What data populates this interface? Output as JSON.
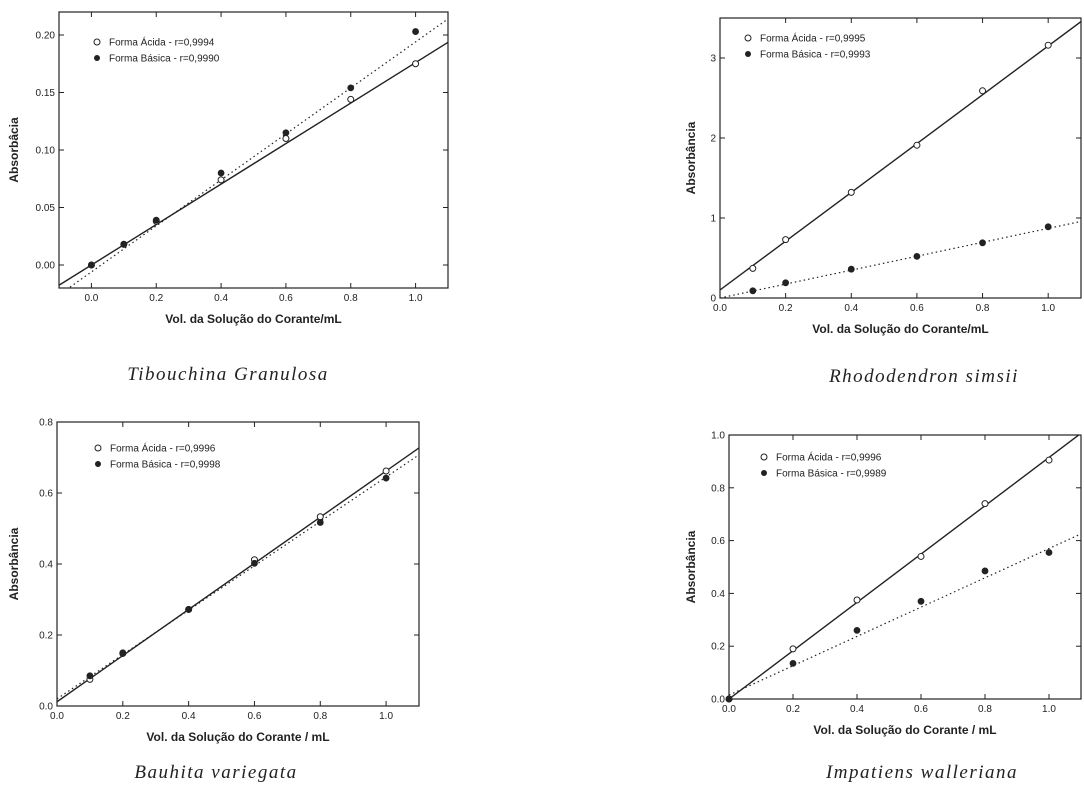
{
  "chart_data": [
    {
      "type": "scatter",
      "caption": "Tibouchina Granulosa",
      "xlabel": "Vol. da Solução do Corante/mL",
      "ylabel": "Absorbâcia",
      "xlim": [
        -0.1,
        1.1
      ],
      "ylim": [
        -0.02,
        0.22
      ],
      "xticks": [
        0.0,
        0.2,
        0.4,
        0.6,
        0.8,
        1.0
      ],
      "xtick_labels": [
        "0.0",
        "0.2",
        "0.4",
        "0.6",
        "0.8",
        "1.0"
      ],
      "yticks": [
        0.0,
        0.05,
        0.1,
        0.15,
        0.2
      ],
      "ytick_labels": [
        "0.00",
        "0.05",
        "0.10",
        "0.15",
        "0.20"
      ],
      "legend_position": "top-left",
      "series": [
        {
          "name": "Forma Ácida - r=0,9994",
          "marker": "open",
          "line": "solid",
          "x": [
            0.0,
            0.1,
            0.2,
            0.4,
            0.6,
            0.8,
            1.0
          ],
          "y": [
            0.0,
            0.018,
            0.038,
            0.074,
            0.11,
            0.144,
            0.175
          ],
          "fit": {
            "intercept": 0.0,
            "slope": 0.176
          }
        },
        {
          "name": "Forma Básica - r=0,9990",
          "marker": "filled",
          "line": "dotted",
          "x": [
            0.0,
            0.1,
            0.2,
            0.4,
            0.6,
            0.8,
            1.0
          ],
          "y": [
            0.0,
            0.018,
            0.039,
            0.08,
            0.115,
            0.154,
            0.203
          ],
          "fit": {
            "intercept": -0.006,
            "slope": 0.2
          }
        }
      ]
    },
    {
      "type": "scatter",
      "caption": "Rhododendron simsii",
      "xlabel": "Vol. da Solução do Corante/mL",
      "ylabel": "Absorbância",
      "xlim": [
        0.0,
        1.1
      ],
      "ylim": [
        0.0,
        3.5
      ],
      "xticks": [
        0.0,
        0.2,
        0.4,
        0.6,
        0.8,
        1.0
      ],
      "xtick_labels": [
        "0.0",
        "0.2",
        "0.4",
        "0.6",
        "0.8",
        "1.0"
      ],
      "yticks": [
        0,
        1,
        2,
        3
      ],
      "ytick_labels": [
        "0",
        "1",
        "2",
        "3"
      ],
      "legend_position": "top-left",
      "series": [
        {
          "name": "Forma Ácida - r=0,9995",
          "marker": "open",
          "line": "solid",
          "x": [
            0.1,
            0.2,
            0.4,
            0.6,
            0.8,
            1.0
          ],
          "y": [
            0.37,
            0.73,
            1.32,
            1.91,
            2.59,
            3.16
          ],
          "fit": {
            "intercept": 0.1,
            "slope": 3.05
          }
        },
        {
          "name": "Forma Básica - r=0,9993",
          "marker": "filled",
          "line": "dotted",
          "x": [
            0.1,
            0.2,
            0.4,
            0.6,
            0.8,
            1.0
          ],
          "y": [
            0.09,
            0.19,
            0.36,
            0.52,
            0.69,
            0.89
          ],
          "fit": {
            "intercept": 0.0,
            "slope": 0.87
          }
        }
      ]
    },
    {
      "type": "scatter",
      "caption": "Bauhita variegata",
      "xlabel": "Vol. da Solução do Corante / mL",
      "ylabel": "Absorbância",
      "xlim": [
        0.0,
        1.1
      ],
      "ylim": [
        0.0,
        0.8
      ],
      "xticks": [
        0.0,
        0.2,
        0.4,
        0.6,
        0.8,
        1.0
      ],
      "xtick_labels": [
        "0.0",
        "0.2",
        "0.4",
        "0.6",
        "0.8",
        "1.0"
      ],
      "yticks": [
        0.0,
        0.2,
        0.4,
        0.6,
        0.8
      ],
      "ytick_labels": [
        "0.0",
        "0.2",
        "0.4",
        "0.6",
        "0.8"
      ],
      "legend_position": "top-left",
      "series": [
        {
          "name": "Forma Ácida - r=0,9996",
          "marker": "open",
          "line": "solid",
          "x": [
            0.1,
            0.2,
            0.4,
            0.6,
            0.8,
            1.0
          ],
          "y": [
            0.075,
            0.148,
            0.272,
            0.412,
            0.533,
            0.662
          ],
          "fit": {
            "intercept": 0.012,
            "slope": 0.65
          }
        },
        {
          "name": "Forma Básica - r=0,9998",
          "marker": "filled",
          "line": "dotted",
          "x": [
            0.1,
            0.2,
            0.4,
            0.6,
            0.8,
            1.0
          ],
          "y": [
            0.085,
            0.15,
            0.272,
            0.402,
            0.517,
            0.642
          ],
          "fit": {
            "intercept": 0.02,
            "slope": 0.625
          }
        }
      ]
    },
    {
      "type": "scatter",
      "caption": "Impatiens walleriana",
      "xlabel": "Vol. da Solução do Corante / mL",
      "ylabel": "Absorbância",
      "xlim": [
        0.0,
        1.1
      ],
      "ylim": [
        0.0,
        1.0
      ],
      "xticks": [
        0.0,
        0.2,
        0.4,
        0.6,
        0.8,
        1.0
      ],
      "xtick_labels": [
        "0.0",
        "0.2",
        "0.4",
        "0.6",
        "0.8",
        "1.0"
      ],
      "yticks": [
        0.0,
        0.2,
        0.4,
        0.6,
        0.8,
        1.0
      ],
      "ytick_labels": [
        "0.0",
        "0.2",
        "0.4",
        "0.6",
        "0.8",
        "1.0"
      ],
      "legend_position": "top-left",
      "series": [
        {
          "name": "Forma Ácida - r=0,9996",
          "marker": "open",
          "line": "solid",
          "x": [
            0.0,
            0.2,
            0.4,
            0.6,
            0.8,
            1.0
          ],
          "y": [
            0.0,
            0.19,
            0.375,
            0.54,
            0.74,
            0.905
          ],
          "fit": {
            "intercept": 0.0,
            "slope": 0.915
          }
        },
        {
          "name": "Forma Básica - r=0,9989",
          "marker": "filled",
          "line": "dotted",
          "x": [
            0.0,
            0.2,
            0.4,
            0.6,
            0.8,
            1.0
          ],
          "y": [
            0.0,
            0.135,
            0.26,
            0.37,
            0.485,
            0.555
          ],
          "fit": {
            "intercept": 0.015,
            "slope": 0.555
          }
        }
      ]
    }
  ]
}
